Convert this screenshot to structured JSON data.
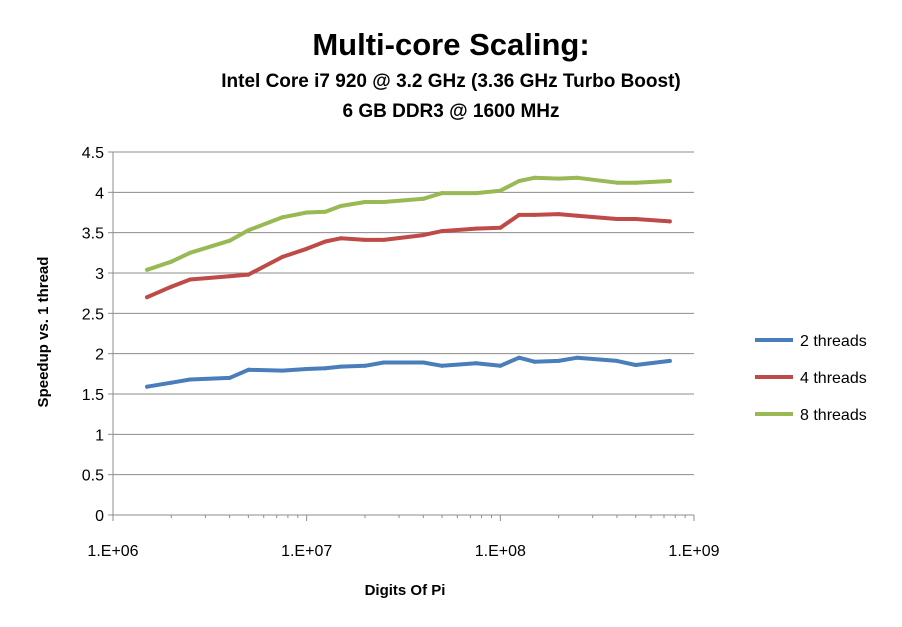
{
  "chart_data": {
    "type": "line",
    "title": "Multi-core Scaling:",
    "subtitle_lines": [
      "Intel Core i7 920 @ 3.2 GHz (3.36 GHz Turbo Boost)",
      "6 GB DDR3 @ 1600 MHz"
    ],
    "xlabel": "Digits Of Pi",
    "ylabel": "Speedup vs. 1 thread",
    "x_scale": "log",
    "xlim": [
      1000000,
      1000000000
    ],
    "x_ticks": [
      1000000,
      10000000,
      100000000,
      1000000000
    ],
    "x_tick_labels": [
      "1.E+06",
      "1.E+07",
      "1.E+08",
      "1.E+09"
    ],
    "ylim": [
      0,
      4.5
    ],
    "y_ticks": [
      0,
      0.5,
      1,
      1.5,
      2,
      2.5,
      3,
      3.5,
      4,
      4.5
    ],
    "y_tick_labels": [
      "0",
      "0.5",
      "1",
      "1.5",
      "2",
      "2.5",
      "3",
      "3.5",
      "4",
      "4.5"
    ],
    "grid": "horizontal",
    "legend_position": "right",
    "x": [
      1500000,
      2000000,
      2500000,
      4000000,
      5000000,
      7500000,
      10000000,
      12500000,
      15000000,
      20000000,
      25000000,
      40000000,
      50000000,
      75000000,
      100000000,
      125000000,
      150000000,
      200000000,
      250000000,
      400000000,
      500000000,
      750000000
    ],
    "series": [
      {
        "name": "2 threads",
        "color": "#4a7ebb",
        "values": [
          1.59,
          1.64,
          1.68,
          1.7,
          1.8,
          1.79,
          1.81,
          1.82,
          1.84,
          1.85,
          1.89,
          1.89,
          1.85,
          1.88,
          1.85,
          1.95,
          1.9,
          1.91,
          1.95,
          1.91,
          1.86,
          1.91
        ]
      },
      {
        "name": "4 threads",
        "color": "#be4b48",
        "values": [
          2.7,
          2.83,
          2.92,
          2.96,
          2.98,
          3.2,
          3.3,
          3.39,
          3.43,
          3.41,
          3.41,
          3.47,
          3.52,
          3.55,
          3.56,
          3.72,
          3.72,
          3.73,
          3.71,
          3.67,
          3.67,
          3.64
        ]
      },
      {
        "name": "8 threads",
        "color": "#98b954",
        "values": [
          3.04,
          3.14,
          3.25,
          3.4,
          3.53,
          3.69,
          3.75,
          3.76,
          3.83,
          3.88,
          3.88,
          3.92,
          3.99,
          3.99,
          4.02,
          4.14,
          4.18,
          4.17,
          4.18,
          4.12,
          4.12,
          4.14
        ]
      }
    ]
  }
}
